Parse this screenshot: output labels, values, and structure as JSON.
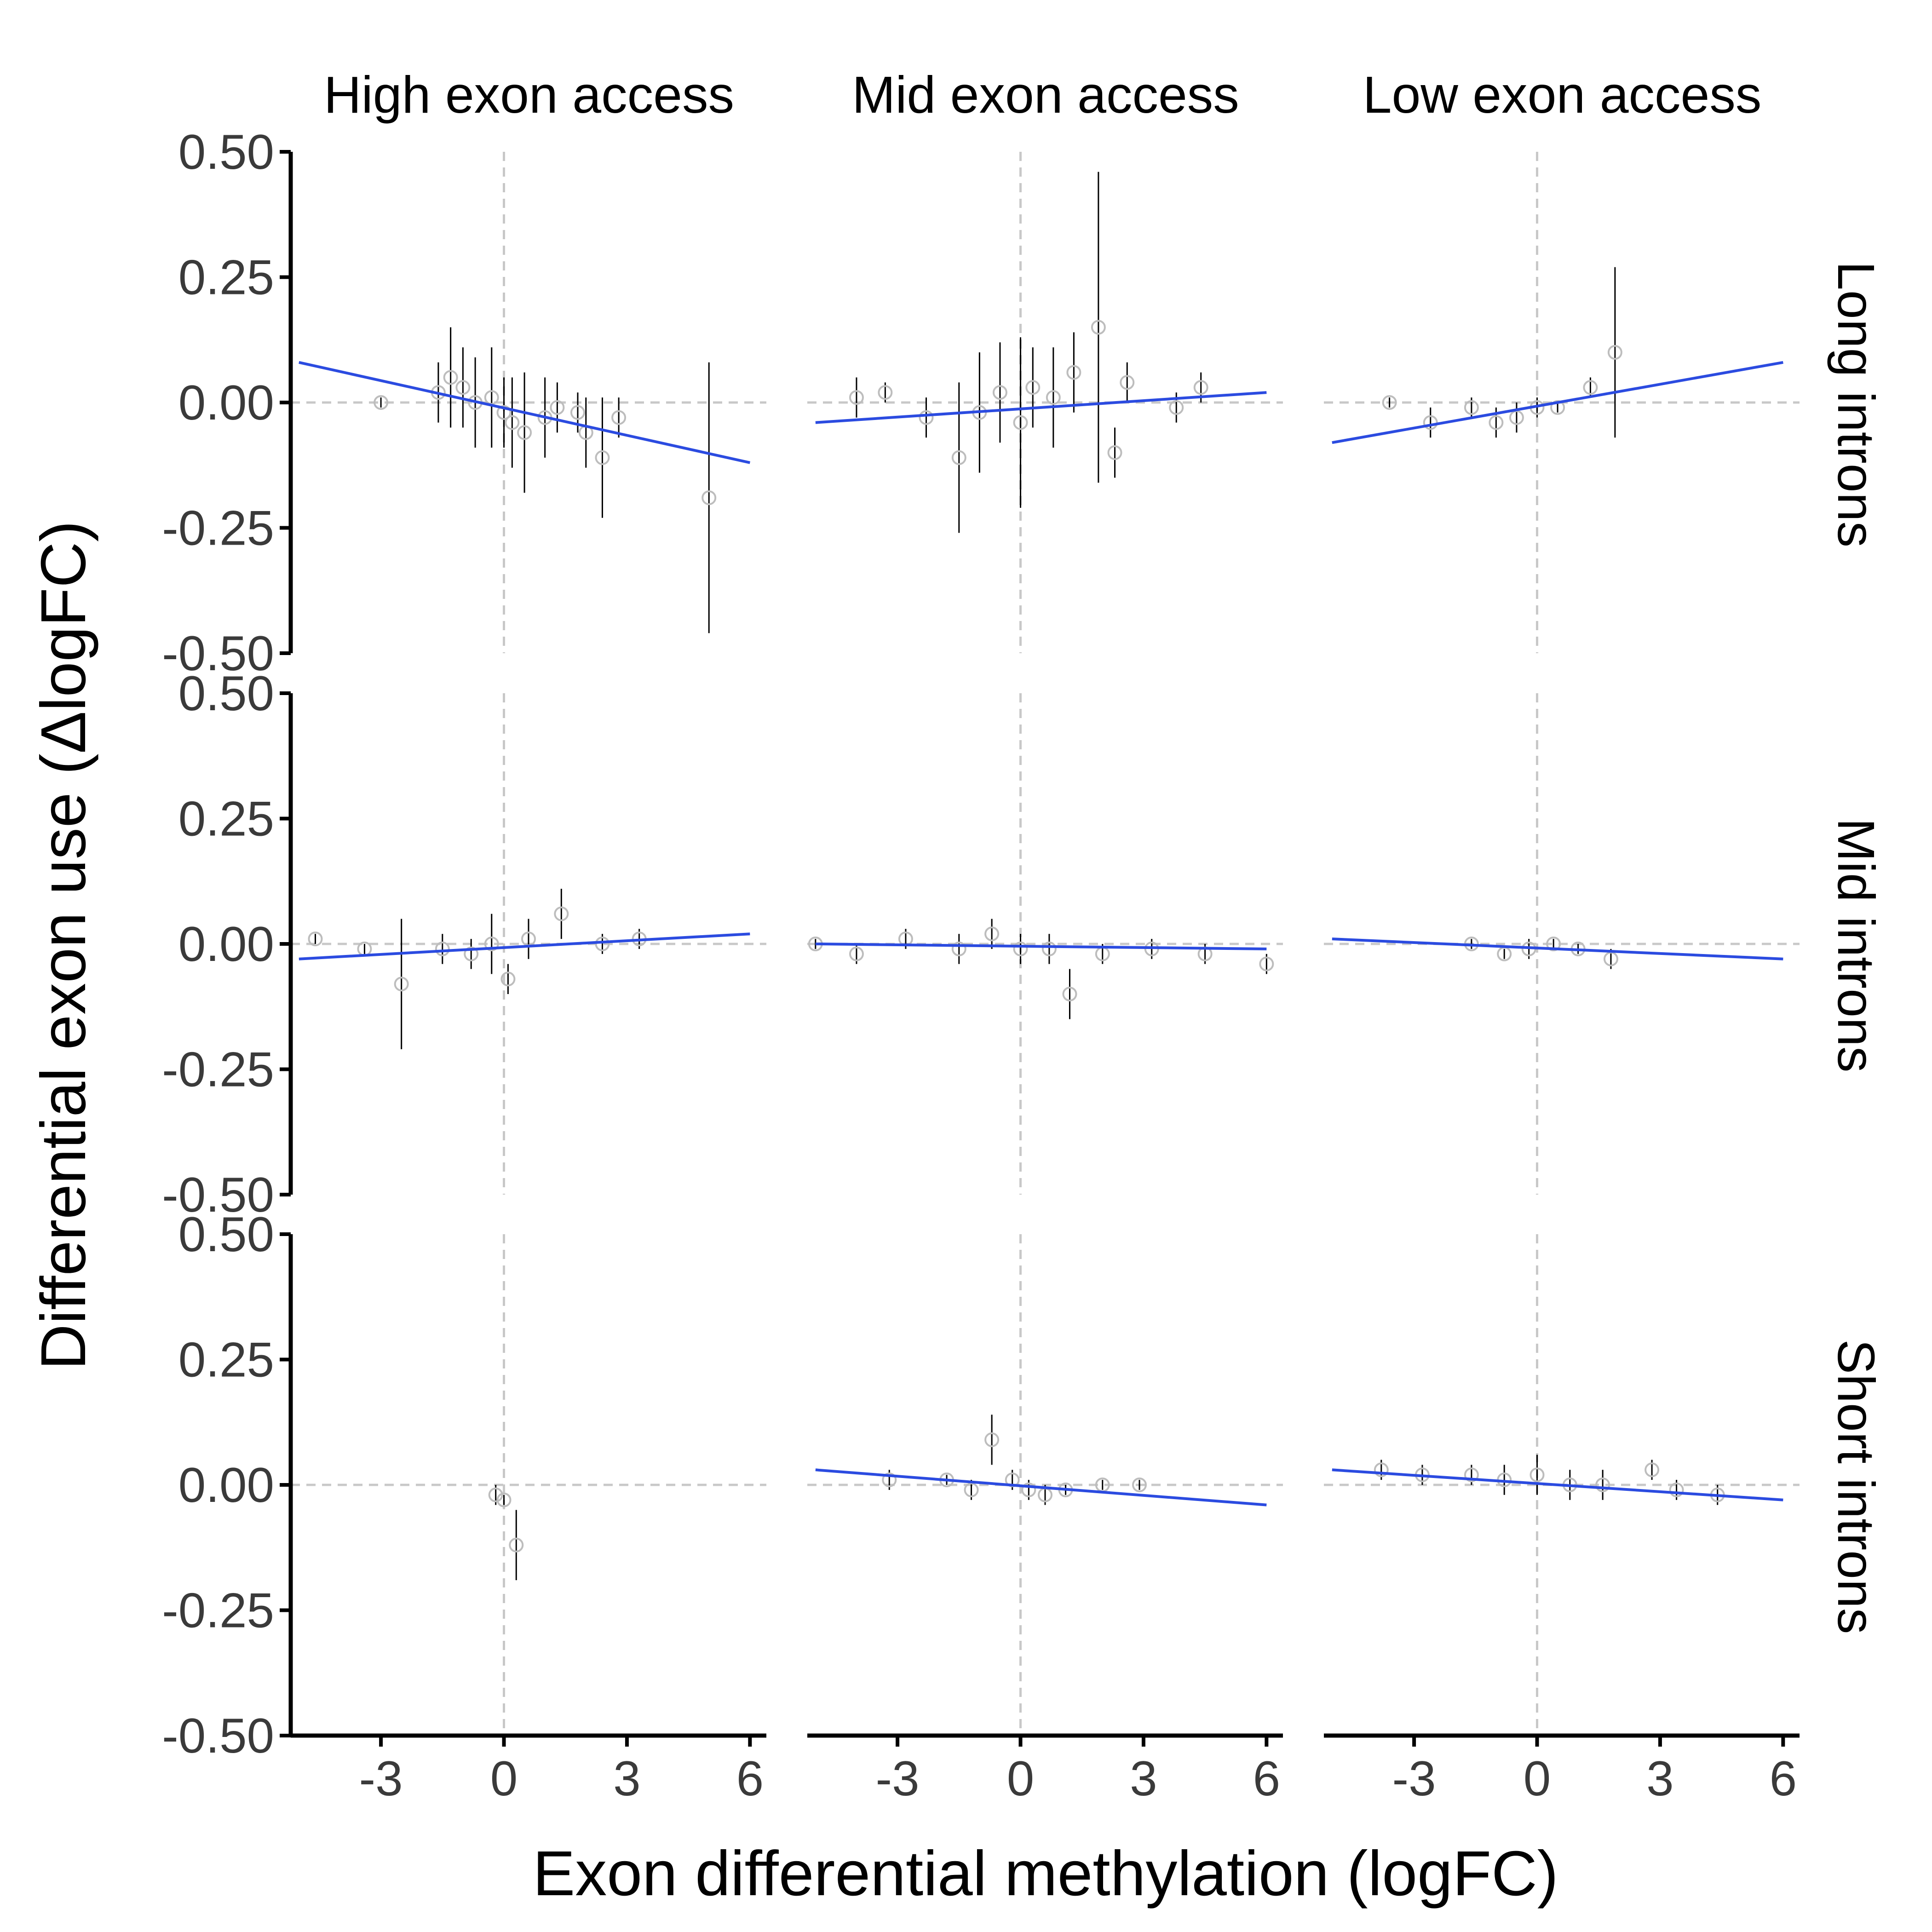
{
  "chart_data": {
    "type": "scatter",
    "xlabel": "Exon differential methylation (logFC)",
    "ylabel": "Differential exon use (ΔlogFC)",
    "col_labels": [
      "High exon access",
      "Mid exon access",
      "Low exon access"
    ],
    "row_labels": [
      "Long introns",
      "Mid introns",
      "Short introns"
    ],
    "xlim": [
      -5.2,
      6.4
    ],
    "ylim": [
      -0.5,
      0.5
    ],
    "xticks": [
      -3,
      0,
      3,
      6
    ],
    "xtick_labels": [
      "-3",
      "0",
      "3",
      "6"
    ],
    "yticks": [
      0.5,
      0.25,
      0.0,
      -0.25,
      -0.5
    ],
    "ytick_labels": [
      "0.50",
      "0.25",
      "0.00",
      "-0.25",
      "-0.50"
    ],
    "reference_lines": {
      "x": 0,
      "y": 0,
      "style": "dashed"
    },
    "colors": {
      "fit_line": "#2b4be0",
      "error_bar": "#000000",
      "point": "#bdbdbd",
      "reference": "#c8c8c8"
    },
    "panels": [
      {
        "row": 0,
        "col": 0,
        "fit": [
          [
            -5,
            0.08
          ],
          [
            6,
            -0.12
          ]
        ],
        "points": [
          [
            -3,
            0.0,
            0.01
          ],
          [
            -1.6,
            0.02,
            0.06
          ],
          [
            -1.3,
            0.05,
            0.1
          ],
          [
            -1.0,
            0.03,
            0.08
          ],
          [
            -0.7,
            0.0,
            0.09
          ],
          [
            -0.3,
            0.01,
            0.1
          ],
          [
            0.0,
            -0.02,
            0.07
          ],
          [
            0.2,
            -0.04,
            0.09
          ],
          [
            0.5,
            -0.06,
            0.12
          ],
          [
            1.0,
            -0.03,
            0.08
          ],
          [
            1.3,
            -0.01,
            0.05
          ],
          [
            1.8,
            -0.02,
            0.04
          ],
          [
            2.0,
            -0.06,
            0.07
          ],
          [
            2.4,
            -0.11,
            0.12
          ],
          [
            2.8,
            -0.03,
            0.04
          ],
          [
            5.0,
            -0.19,
            0.27
          ]
        ]
      },
      {
        "row": 0,
        "col": 1,
        "fit": [
          [
            -5,
            -0.04
          ],
          [
            6,
            0.02
          ]
        ],
        "points": [
          [
            -4.0,
            0.01,
            0.04
          ],
          [
            -3.3,
            0.02,
            0.02
          ],
          [
            -2.3,
            -0.03,
            0.04
          ],
          [
            -1.5,
            -0.11,
            0.15
          ],
          [
            -1.0,
            -0.02,
            0.12
          ],
          [
            -0.5,
            0.02,
            0.1
          ],
          [
            0.0,
            -0.04,
            0.17
          ],
          [
            0.3,
            0.03,
            0.08
          ],
          [
            0.8,
            0.01,
            0.1
          ],
          [
            1.3,
            0.06,
            0.08
          ],
          [
            1.9,
            0.15,
            0.31
          ],
          [
            2.3,
            -0.1,
            0.05
          ],
          [
            2.6,
            0.04,
            0.04
          ],
          [
            3.8,
            -0.01,
            0.03
          ],
          [
            4.4,
            0.03,
            0.03
          ]
        ]
      },
      {
        "row": 0,
        "col": 2,
        "fit": [
          [
            -5,
            -0.08
          ],
          [
            6,
            0.08
          ]
        ],
        "points": [
          [
            -3.6,
            0.0,
            0.01
          ],
          [
            -2.6,
            -0.04,
            0.03
          ],
          [
            -1.6,
            -0.01,
            0.02
          ],
          [
            -1.0,
            -0.04,
            0.03
          ],
          [
            -0.5,
            -0.03,
            0.03
          ],
          [
            0.0,
            -0.01,
            0.02
          ],
          [
            0.5,
            -0.01,
            0.01
          ],
          [
            1.3,
            0.03,
            0.02
          ],
          [
            1.9,
            0.1,
            0.17
          ]
        ]
      },
      {
        "row": 1,
        "col": 0,
        "fit": [
          [
            -5,
            -0.03
          ],
          [
            6,
            0.02
          ]
        ],
        "points": [
          [
            -4.6,
            0.01,
            0.01
          ],
          [
            -3.4,
            -0.01,
            0.01
          ],
          [
            -2.5,
            -0.08,
            0.13
          ],
          [
            -1.5,
            -0.01,
            0.03
          ],
          [
            -0.8,
            -0.02,
            0.03
          ],
          [
            -0.3,
            0.0,
            0.06
          ],
          [
            0.1,
            -0.07,
            0.03
          ],
          [
            0.6,
            0.01,
            0.04
          ],
          [
            1.4,
            0.06,
            0.05
          ],
          [
            2.4,
            0.0,
            0.02
          ],
          [
            3.3,
            0.01,
            0.02
          ]
        ]
      },
      {
        "row": 1,
        "col": 1,
        "fit": [
          [
            -5,
            0.0
          ],
          [
            6,
            -0.01
          ]
        ],
        "points": [
          [
            -5.0,
            0.0,
            0.01
          ],
          [
            -4.0,
            -0.02,
            0.02
          ],
          [
            -2.8,
            0.01,
            0.02
          ],
          [
            -1.5,
            -0.01,
            0.03
          ],
          [
            -0.7,
            0.02,
            0.03
          ],
          [
            0.0,
            -0.01,
            0.03
          ],
          [
            0.7,
            -0.01,
            0.03
          ],
          [
            1.2,
            -0.1,
            0.05
          ],
          [
            2.0,
            -0.02,
            0.02
          ],
          [
            3.2,
            -0.01,
            0.02
          ],
          [
            4.5,
            -0.02,
            0.02
          ],
          [
            6.0,
            -0.04,
            0.02
          ]
        ]
      },
      {
        "row": 1,
        "col": 2,
        "fit": [
          [
            -5,
            0.01
          ],
          [
            6,
            -0.03
          ]
        ],
        "points": [
          [
            -1.6,
            0.0,
            0.01
          ],
          [
            -0.8,
            -0.02,
            0.01
          ],
          [
            -0.2,
            -0.01,
            0.02
          ],
          [
            0.4,
            0.0,
            0.01
          ],
          [
            1.0,
            -0.01,
            0.01
          ],
          [
            1.8,
            -0.03,
            0.02
          ]
        ]
      },
      {
        "row": 2,
        "col": 0,
        "fit": null,
        "points": [
          [
            -0.2,
            -0.02,
            0.02
          ],
          [
            0.0,
            -0.03,
            0.01
          ],
          [
            0.3,
            -0.12,
            0.07
          ]
        ]
      },
      {
        "row": 2,
        "col": 1,
        "fit": [
          [
            -5,
            0.03
          ],
          [
            6,
            -0.04
          ]
        ],
        "points": [
          [
            -3.2,
            0.01,
            0.02
          ],
          [
            -1.8,
            0.01,
            0.01
          ],
          [
            -1.2,
            -0.01,
            0.02
          ],
          [
            -0.7,
            0.09,
            0.05
          ],
          [
            -0.2,
            0.01,
            0.02
          ],
          [
            0.2,
            -0.01,
            0.02
          ],
          [
            0.6,
            -0.02,
            0.02
          ],
          [
            1.1,
            -0.01,
            0.01
          ],
          [
            2.0,
            0.0,
            0.01
          ],
          [
            2.9,
            0.0,
            0.01
          ]
        ]
      },
      {
        "row": 2,
        "col": 2,
        "fit": [
          [
            -5,
            0.03
          ],
          [
            6,
            -0.03
          ]
        ],
        "points": [
          [
            -3.8,
            0.03,
            0.02
          ],
          [
            -2.8,
            0.02,
            0.02
          ],
          [
            -1.6,
            0.02,
            0.02
          ],
          [
            -0.8,
            0.01,
            0.03
          ],
          [
            0.0,
            0.02,
            0.04
          ],
          [
            0.8,
            0.0,
            0.03
          ],
          [
            1.6,
            0.0,
            0.03
          ],
          [
            2.8,
            0.03,
            0.02
          ],
          [
            3.4,
            -0.01,
            0.02
          ],
          [
            4.4,
            -0.02,
            0.02
          ]
        ]
      }
    ]
  }
}
